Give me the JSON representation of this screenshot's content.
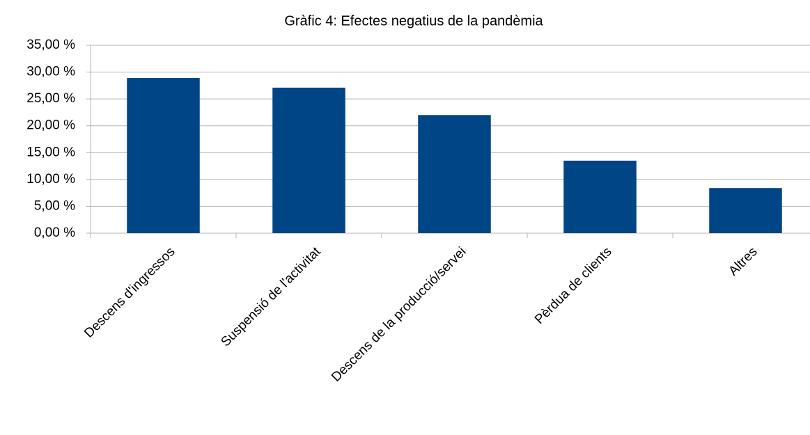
{
  "chart_data": {
    "type": "bar",
    "title": "Gràfic 4: Efectes negatius de la pandèmia",
    "categories": [
      "Descens d'ingressos",
      "Suspensió de l'activitat",
      "Descens de la producció/servei",
      "Pèrdua de clients",
      "Altres"
    ],
    "values": [
      28.9,
      27.1,
      22.0,
      13.5,
      8.4
    ],
    "color": "#004586",
    "ylim": [
      0,
      35
    ],
    "yticks": [
      {
        "value": 0,
        "label": "0,00 %"
      },
      {
        "value": 5,
        "label": "5,00 %"
      },
      {
        "value": 10,
        "label": "10,00 %"
      },
      {
        "value": 15,
        "label": "15,00 %"
      },
      {
        "value": 20,
        "label": "20,00 %"
      },
      {
        "value": 25,
        "label": "25,00 %"
      },
      {
        "value": 30,
        "label": "30,00 %"
      },
      {
        "value": 35,
        "label": "35,00 %"
      }
    ],
    "grid": true
  }
}
